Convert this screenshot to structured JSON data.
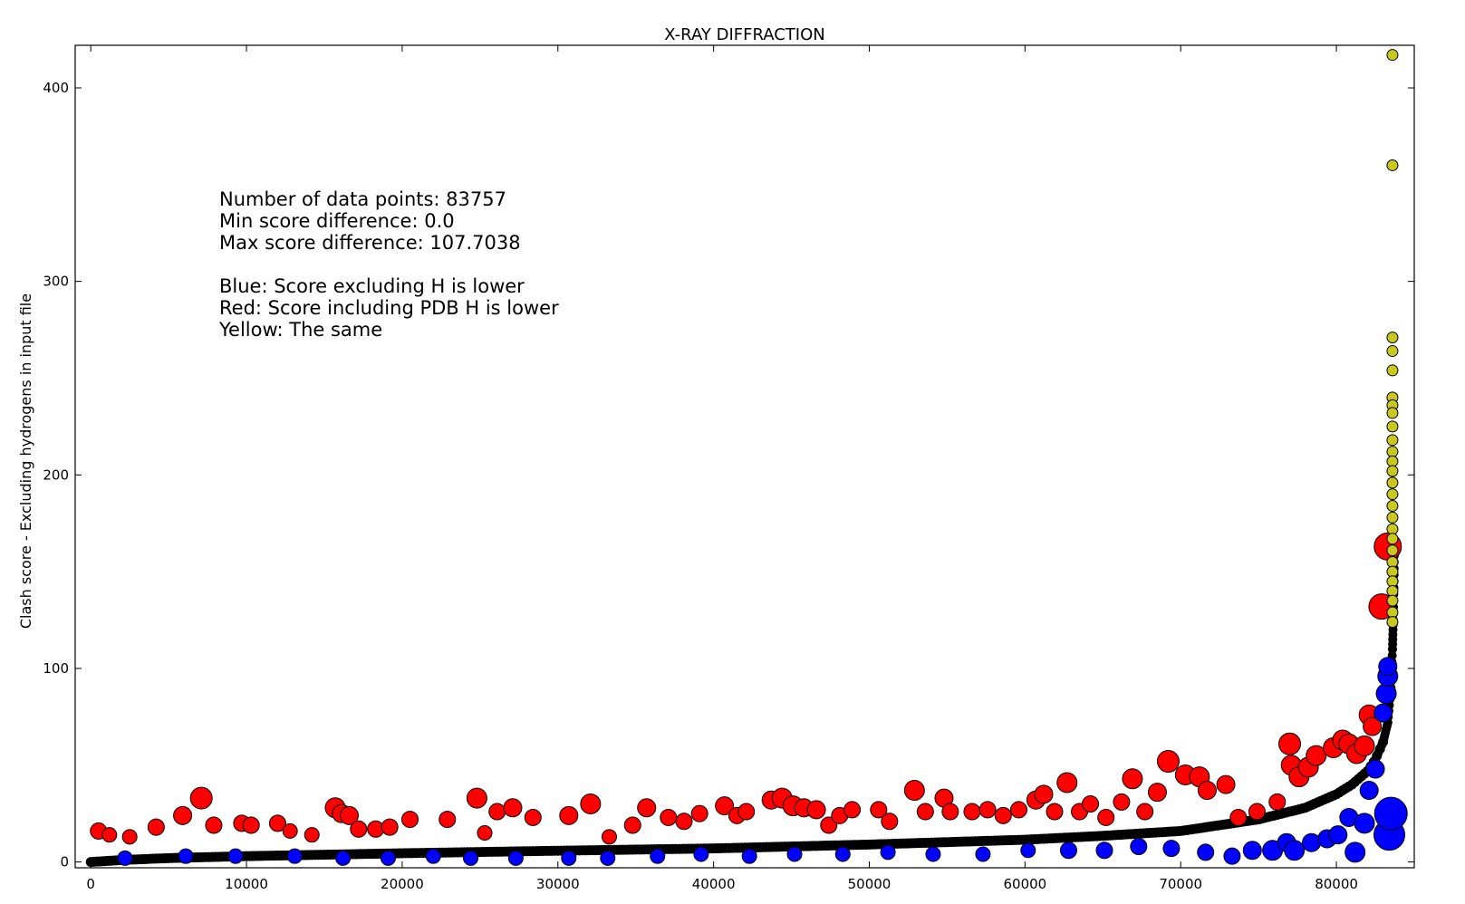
{
  "chart_data": {
    "type": "scatter",
    "title": "X-RAY DIFFRACTION",
    "xlabel": "",
    "ylabel": "Clash score - Excluding hydrogens in input file",
    "xlim": [
      -1000,
      85000
    ],
    "ylim": [
      -3,
      422
    ],
    "xticks": [
      0,
      10000,
      20000,
      30000,
      40000,
      50000,
      60000,
      70000,
      80000
    ],
    "yticks": [
      0,
      100,
      200,
      300,
      400
    ],
    "annotation_lines": [
      "Number of data points: 83757",
      "Min score difference: 0.0",
      "Max score difference: 107.7038",
      "",
      "Blue: Score excluding H is lower",
      "Red: Score including PDB H is lower",
      "Yellow: The same"
    ],
    "colors": {
      "black": "#000000",
      "red": "#ff0000",
      "blue": "#0000ff",
      "yellow": "#c8c820"
    },
    "base_curve": [
      [
        0,
        0
      ],
      [
        2000,
        1
      ],
      [
        5000,
        2
      ],
      [
        10000,
        3
      ],
      [
        20000,
        4.5
      ],
      [
        30000,
        5.8
      ],
      [
        40000,
        7
      ],
      [
        50000,
        9
      ],
      [
        60000,
        11.5
      ],
      [
        65000,
        13.5
      ],
      [
        70000,
        16
      ],
      [
        75000,
        22
      ],
      [
        78000,
        28
      ],
      [
        80000,
        35
      ],
      [
        81000,
        40
      ],
      [
        82000,
        47
      ],
      [
        82500,
        53
      ],
      [
        83000,
        62
      ],
      [
        83300,
        72
      ],
      [
        83500,
        90
      ],
      [
        83600,
        110
      ],
      [
        83650,
        125
      ],
      [
        83700,
        145
      ],
      [
        83720,
        165
      ]
    ],
    "series": [
      {
        "name": "Red",
        "color": "red",
        "points": [
          [
            500,
            16,
            9
          ],
          [
            1200,
            14,
            8
          ],
          [
            2500,
            13,
            8
          ],
          [
            4200,
            18,
            9
          ],
          [
            5900,
            24,
            10
          ],
          [
            7100,
            33,
            12
          ],
          [
            7900,
            19,
            9
          ],
          [
            9700,
            20,
            9
          ],
          [
            10300,
            19,
            9
          ],
          [
            12000,
            20,
            9
          ],
          [
            12800,
            16,
            8
          ],
          [
            14200,
            14,
            8
          ],
          [
            15700,
            28,
            11
          ],
          [
            16100,
            25,
            10
          ],
          [
            16600,
            24,
            10
          ],
          [
            17200,
            17,
            9
          ],
          [
            18300,
            17,
            9
          ],
          [
            19200,
            18,
            9
          ],
          [
            20500,
            22,
            9
          ],
          [
            22900,
            22,
            9
          ],
          [
            24800,
            33,
            11
          ],
          [
            25300,
            15,
            8
          ],
          [
            26100,
            26,
            9
          ],
          [
            27100,
            28,
            10
          ],
          [
            28400,
            23,
            9
          ],
          [
            30700,
            24,
            10
          ],
          [
            32100,
            30,
            11
          ],
          [
            33300,
            13,
            8
          ],
          [
            34800,
            19,
            9
          ],
          [
            35700,
            28,
            10
          ],
          [
            37100,
            23,
            9
          ],
          [
            38100,
            21,
            9
          ],
          [
            39100,
            25,
            9
          ],
          [
            40700,
            29,
            10
          ],
          [
            41500,
            24,
            9
          ],
          [
            42100,
            26,
            9
          ],
          [
            43700,
            32,
            10
          ],
          [
            44400,
            33,
            11
          ],
          [
            45100,
            29,
            11
          ],
          [
            45800,
            28,
            10
          ],
          [
            46600,
            27,
            10
          ],
          [
            47400,
            19,
            9
          ],
          [
            48100,
            24,
            9
          ],
          [
            48900,
            27,
            9
          ],
          [
            50600,
            27,
            9
          ],
          [
            51300,
            21,
            9
          ],
          [
            52900,
            37,
            11
          ],
          [
            53600,
            26,
            9
          ],
          [
            54800,
            33,
            10
          ],
          [
            55200,
            26,
            9
          ],
          [
            56600,
            26,
            9
          ],
          [
            57600,
            27,
            9
          ],
          [
            58600,
            24,
            9
          ],
          [
            59600,
            27,
            9
          ],
          [
            60700,
            32,
            10
          ],
          [
            61200,
            35,
            10
          ],
          [
            61900,
            26,
            9
          ],
          [
            62700,
            41,
            11
          ],
          [
            63500,
            26,
            9
          ],
          [
            64200,
            30,
            9
          ],
          [
            65200,
            23,
            9
          ],
          [
            66200,
            31,
            9
          ],
          [
            66900,
            43,
            11
          ],
          [
            67700,
            26,
            9
          ],
          [
            68500,
            36,
            10
          ],
          [
            69200,
            52,
            12
          ],
          [
            70300,
            45,
            11
          ],
          [
            71200,
            44,
            11
          ],
          [
            71700,
            37,
            10
          ],
          [
            72900,
            40,
            10
          ],
          [
            73700,
            23,
            9
          ],
          [
            74900,
            26,
            9
          ],
          [
            76200,
            31,
            9
          ],
          [
            77000,
            61,
            12
          ],
          [
            77100,
            50,
            11
          ],
          [
            77600,
            44,
            11
          ],
          [
            78200,
            49,
            11
          ],
          [
            78700,
            55,
            11
          ],
          [
            79800,
            59,
            11
          ],
          [
            80400,
            63,
            11
          ],
          [
            80800,
            61,
            11
          ],
          [
            81300,
            56,
            11
          ],
          [
            81800,
            60,
            11
          ],
          [
            82100,
            76,
            11
          ],
          [
            82300,
            70,
            10
          ],
          [
            82900,
            132,
            14
          ],
          [
            83300,
            163,
            15
          ]
        ]
      },
      {
        "name": "Blue",
        "color": "blue",
        "points": [
          [
            2200,
            2,
            8
          ],
          [
            6100,
            3,
            8
          ],
          [
            9300,
            3,
            8
          ],
          [
            13100,
            3,
            8
          ],
          [
            16200,
            2,
            8
          ],
          [
            19100,
            2,
            8
          ],
          [
            22000,
            3,
            8
          ],
          [
            24400,
            2,
            8
          ],
          [
            27300,
            2,
            8
          ],
          [
            30700,
            2,
            8
          ],
          [
            33200,
            2,
            8
          ],
          [
            36400,
            3,
            8
          ],
          [
            39200,
            4,
            8
          ],
          [
            42300,
            3,
            8
          ],
          [
            45200,
            4,
            8
          ],
          [
            48300,
            4,
            8
          ],
          [
            51200,
            5,
            8
          ],
          [
            54100,
            4,
            8
          ],
          [
            57300,
            4,
            8
          ],
          [
            60200,
            6,
            8
          ],
          [
            62800,
            6,
            9
          ],
          [
            65100,
            6,
            9
          ],
          [
            67300,
            8,
            9
          ],
          [
            69400,
            7,
            9
          ],
          [
            71600,
            5,
            9
          ],
          [
            73300,
            3,
            9
          ],
          [
            74600,
            6,
            10
          ],
          [
            75900,
            6,
            11
          ],
          [
            76800,
            10,
            10
          ],
          [
            77300,
            6,
            11
          ],
          [
            78400,
            10,
            10
          ],
          [
            79400,
            12,
            10
          ],
          [
            80100,
            14,
            10
          ],
          [
            80800,
            23,
            10
          ],
          [
            81200,
            5,
            11
          ],
          [
            81800,
            20,
            11
          ],
          [
            82100,
            37,
            10
          ],
          [
            82500,
            48,
            10
          ],
          [
            83000,
            77,
            10
          ],
          [
            83200,
            87,
            11
          ],
          [
            83300,
            96,
            11
          ],
          [
            83300,
            101,
            10
          ],
          [
            83400,
            14,
            17
          ],
          [
            83500,
            25,
            18
          ]
        ]
      },
      {
        "name": "Yellow",
        "color": "yellow",
        "points": [
          [
            83600,
            417,
            6
          ],
          [
            83600,
            360,
            6
          ],
          [
            83600,
            271,
            6
          ],
          [
            83600,
            264,
            6
          ],
          [
            83600,
            254,
            6
          ],
          [
            83600,
            240,
            6
          ],
          [
            83600,
            236,
            6
          ],
          [
            83600,
            232,
            6
          ],
          [
            83600,
            225,
            6
          ],
          [
            83600,
            218,
            6
          ],
          [
            83600,
            212,
            6
          ],
          [
            83600,
            207,
            6
          ],
          [
            83600,
            202,
            6
          ],
          [
            83600,
            196,
            6
          ],
          [
            83600,
            190,
            6
          ],
          [
            83600,
            184,
            6
          ],
          [
            83600,
            178,
            6
          ],
          [
            83600,
            172,
            6
          ],
          [
            83600,
            167,
            6
          ],
          [
            83600,
            161,
            6
          ],
          [
            83600,
            155,
            6
          ],
          [
            83600,
            150,
            6
          ],
          [
            83600,
            145,
            6
          ],
          [
            83600,
            140,
            6
          ],
          [
            83600,
            135,
            6
          ],
          [
            83600,
            129,
            6
          ],
          [
            83600,
            124,
            6
          ]
        ]
      }
    ],
    "grid": false,
    "legend": "none"
  }
}
